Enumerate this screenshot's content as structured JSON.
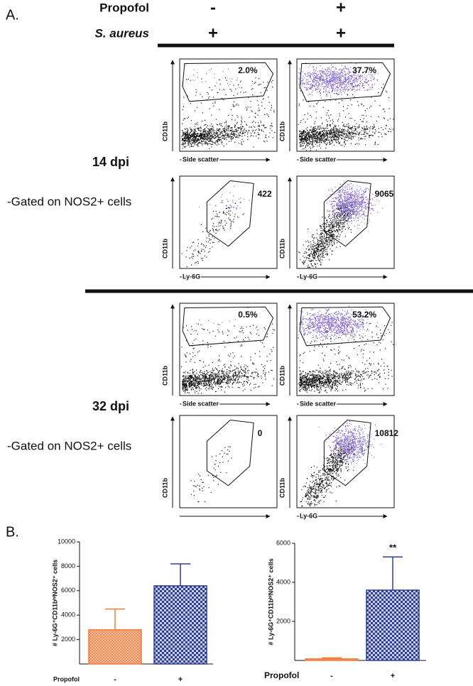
{
  "panel_labels": [
    "A.",
    "B."
  ],
  "header": {
    "rows": [
      {
        "label": "Propofol",
        "values": [
          "-",
          "+"
        ]
      },
      {
        "label": "S. aureus",
        "values": [
          "+",
          "+"
        ]
      }
    ]
  },
  "timepoints": [
    {
      "label": "14 dpi",
      "note": "-Gated on NOS2+ cells",
      "plots": [
        {
          "gate_value": "2.0%",
          "x_label": "Side scatter",
          "y_label": "CD11b"
        },
        {
          "gate_value": "37.7%",
          "x_label": "Side scatter",
          "y_label": "CD11b"
        },
        {
          "gate_value": "422",
          "x_label": "Ly-6G",
          "y_label": "CD11b"
        },
        {
          "gate_value": "9065",
          "x_label": "Ly-6G",
          "y_label": "CD11b"
        }
      ]
    },
    {
      "label": "32 dpi",
      "note": "-Gated on NOS2+ cells",
      "plots": [
        {
          "gate_value": "0.5%",
          "x_label": "Side scatter",
          "y_label": "CD11b"
        },
        {
          "gate_value": "53.2%",
          "x_label": "Side scatter",
          "y_label": "CD11b"
        },
        {
          "gate_value": "0",
          "y_label": "CD11b"
        },
        {
          "gate_value": "10812",
          "x_label": "Ly-6G",
          "y_label": "CD11b"
        }
      ]
    }
  ],
  "chart_data": [
    {
      "type": "bar",
      "y_label": "# Ly-6G⁺CD11bʰⁱNOS2⁺ cells",
      "x_label": "Propofol",
      "categories": [
        "-",
        "+"
      ],
      "values": [
        2800,
        6400
      ],
      "errors": [
        1700,
        1800
      ],
      "colors": [
        "#f07a3a",
        "#2e3f96"
      ],
      "ylim": [
        0,
        10000
      ],
      "yticks": [
        2000,
        4000,
        6000,
        8000,
        10000
      ]
    },
    {
      "type": "bar",
      "y_label": "# Ly-6G⁺CD11bʰⁱNOS2⁺ cells",
      "x_label": "Propofol",
      "categories": [
        "-",
        "+"
      ],
      "values": [
        80,
        3600
      ],
      "errors": [
        50,
        1700
      ],
      "colors": [
        "#f07a3a",
        "#2e3f96"
      ],
      "ylim": [
        0,
        6000
      ],
      "yticks": [
        2000,
        4000,
        6000
      ],
      "annotation": "**"
    }
  ]
}
